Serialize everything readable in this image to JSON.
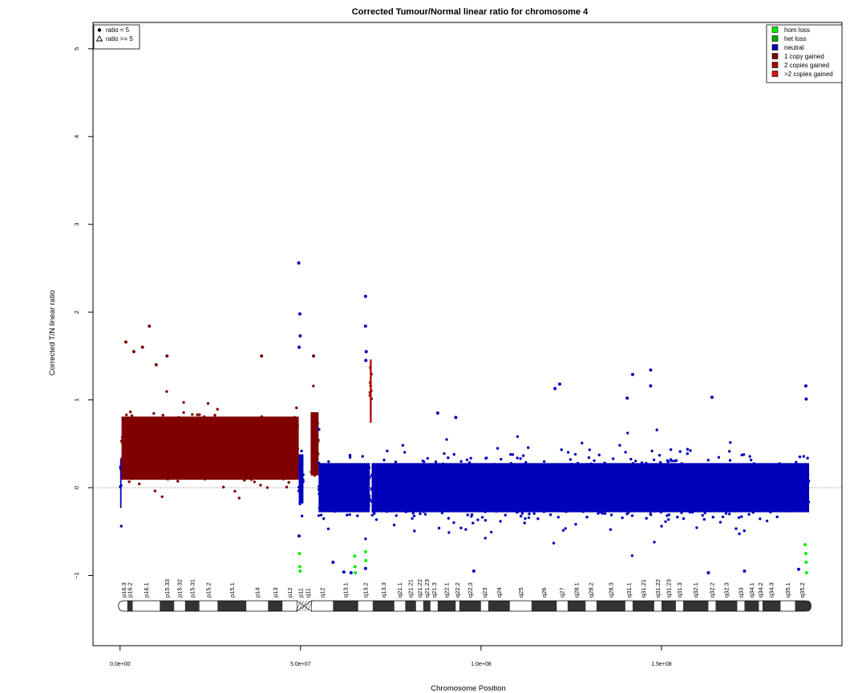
{
  "chart_data": {
    "type": "scatter",
    "title": "Corrected Tumour/Normal linear ratio for chromosome  4",
    "xlabel": "Chromosome Position",
    "ylabel": "Corrected T/N linear ratio",
    "xlim": [
      -7500000,
      200000000
    ],
    "ylim": [
      -1.8,
      5.3
    ],
    "x_ticks": [
      0,
      50000000,
      100000000,
      150000000
    ],
    "x_tick_labels": [
      "0.0e+00",
      "5.0e+07",
      "1.0e+08",
      "1.5e+08"
    ],
    "y_ticks": [
      -1,
      0,
      1,
      2,
      3,
      4,
      5
    ],
    "y_tick_labels": [
      "−1",
      "0",
      "1",
      "2",
      "3",
      "4",
      "5"
    ],
    "reference_line_y": 0,
    "shape_legend": {
      "position": "top-left",
      "entries": [
        {
          "label": "ratio < 5",
          "shape": "circle"
        },
        {
          "label": "ratio >= 5",
          "shape": "triangle"
        }
      ]
    },
    "legend": {
      "position": "top-right",
      "entries": [
        {
          "label": "hom loss",
          "color": "#00ee00"
        },
        {
          "label": "het loss",
          "color": "#00aa00"
        },
        {
          "label": "neutral",
          "color": "#0000bb"
        },
        {
          "label": "1 copy gained",
          "color": "#800000"
        },
        {
          "label": "2 copies gained",
          "color": "#aa0000"
        },
        {
          "label": ">2 copies gained",
          "color": "#dd1111"
        }
      ]
    },
    "segments": [
      {
        "state": "neutral",
        "x_start": 0,
        "x_end": 400000,
        "mean": 0.05,
        "color": "#0000bb"
      },
      {
        "state": "1 copy gained",
        "x_start": 400000,
        "x_end": 49500000,
        "mean": 0.45,
        "color": "#800000"
      },
      {
        "state": "neutral",
        "x_start": 49500000,
        "x_end": 50800000,
        "mean": 0.1,
        "color": "#0000bb"
      },
      {
        "state": "1 copy gained",
        "x_start": 52800000,
        "x_end": 55000000,
        "mean": 0.5,
        "color": "#800000"
      },
      {
        "state": "neutral",
        "x_start": 55000000,
        "x_end": 69200000,
        "mean": 0.0,
        "color": "#0000bb"
      },
      {
        "state": "2 copies gained",
        "x_start": 69200000,
        "x_end": 69700000,
        "mean": 1.1,
        "color": "#aa0000"
      },
      {
        "state": "neutral",
        "x_start": 69700000,
        "x_end": 190900000,
        "mean": 0.0,
        "color": "#0000bb"
      }
    ],
    "outliers": [
      {
        "x": 49500000,
        "y": 2.56,
        "state": "neutral"
      },
      {
        "x": 49800000,
        "y": 1.98,
        "state": "neutral"
      },
      {
        "x": 49900000,
        "y": 1.73,
        "state": "neutral"
      },
      {
        "x": 49600000,
        "y": 1.6,
        "state": "neutral"
      },
      {
        "x": 68000000,
        "y": 2.18,
        "state": "neutral"
      },
      {
        "x": 68000000,
        "y": 1.84,
        "state": "neutral"
      },
      {
        "x": 68200000,
        "y": 1.55,
        "state": "neutral"
      },
      {
        "x": 68100000,
        "y": 1.45,
        "state": "neutral"
      },
      {
        "x": 8100000,
        "y": 1.84,
        "state": "1 copy gained"
      },
      {
        "x": 1600000,
        "y": 1.66,
        "state": "1 copy gained"
      },
      {
        "x": 6200000,
        "y": 1.6,
        "state": "1 copy gained"
      },
      {
        "x": 39200000,
        "y": 1.5,
        "state": "1 copy gained"
      },
      {
        "x": 13000000,
        "y": 1.5,
        "state": "1 copy gained"
      },
      {
        "x": 10000000,
        "y": 1.4,
        "state": "1 copy gained"
      },
      {
        "x": 3800000,
        "y": 1.55,
        "state": "1 copy gained"
      },
      {
        "x": 53600000,
        "y": 1.5,
        "state": "1 copy gained"
      },
      {
        "x": 120500000,
        "y": 1.13,
        "state": "neutral"
      },
      {
        "x": 121800000,
        "y": 1.18,
        "state": "neutral"
      },
      {
        "x": 142000000,
        "y": 1.29,
        "state": "neutral"
      },
      {
        "x": 147000000,
        "y": 1.34,
        "state": "neutral"
      },
      {
        "x": 147000000,
        "y": 1.16,
        "state": "neutral"
      },
      {
        "x": 140500000,
        "y": 1.02,
        "state": "neutral"
      },
      {
        "x": 164000000,
        "y": 1.03,
        "state": "neutral"
      },
      {
        "x": 190000000,
        "y": 1.16,
        "state": "neutral"
      },
      {
        "x": 190100000,
        "y": 1.01,
        "state": "neutral"
      },
      {
        "x": 88000000,
        "y": 0.85,
        "state": "neutral"
      },
      {
        "x": 93000000,
        "y": 0.8,
        "state": "neutral"
      },
      {
        "x": 49700000,
        "y": -0.75,
        "state": "hom loss"
      },
      {
        "x": 49800000,
        "y": -0.9,
        "state": "hom loss"
      },
      {
        "x": 49900000,
        "y": -0.95,
        "state": "hom loss"
      },
      {
        "x": 65000000,
        "y": -0.78,
        "state": "hom loss"
      },
      {
        "x": 65100000,
        "y": -0.9,
        "state": "hom loss"
      },
      {
        "x": 65200000,
        "y": -0.97,
        "state": "hom loss"
      },
      {
        "x": 68000000,
        "y": -0.73,
        "state": "hom loss"
      },
      {
        "x": 68100000,
        "y": -0.83,
        "state": "hom loss"
      },
      {
        "x": 189800000,
        "y": -0.65,
        "state": "hom loss"
      },
      {
        "x": 190000000,
        "y": -0.75,
        "state": "hom loss"
      },
      {
        "x": 190100000,
        "y": -0.85,
        "state": "hom loss"
      },
      {
        "x": 190200000,
        "y": -0.97,
        "state": "hom loss"
      },
      {
        "x": 49600000,
        "y": -0.55,
        "state": "neutral"
      },
      {
        "x": 68000000,
        "y": -0.92,
        "state": "neutral"
      },
      {
        "x": 59000000,
        "y": -0.85,
        "state": "neutral"
      },
      {
        "x": 62000000,
        "y": -0.96,
        "state": "neutral"
      },
      {
        "x": 64000000,
        "y": -0.97,
        "state": "neutral"
      },
      {
        "x": 98000000,
        "y": -0.95,
        "state": "neutral"
      },
      {
        "x": 163000000,
        "y": -0.97,
        "state": "neutral"
      },
      {
        "x": 173000000,
        "y": -0.95,
        "state": "neutral"
      },
      {
        "x": 188000000,
        "y": -0.93,
        "state": "neutral"
      }
    ],
    "ideogram": {
      "x_start": 0,
      "x_end": 191000000,
      "centromere_start": 49000000,
      "centromere_end": 53000000,
      "bands": [
        {
          "name": "p16.3",
          "start": 0,
          "end": 2000000,
          "stain": "gneg"
        },
        {
          "name": "p16.2",
          "start": 2000000,
          "end": 3500000,
          "stain": "gpos"
        },
        {
          "name": "p16.1",
          "start": 3500000,
          "end": 11000000,
          "stain": "gneg"
        },
        {
          "name": "p15.33",
          "start": 11000000,
          "end": 15000000,
          "stain": "gpos"
        },
        {
          "name": "p15.32",
          "start": 15000000,
          "end": 18000000,
          "stain": "gneg"
        },
        {
          "name": "p15.31",
          "start": 18000000,
          "end": 22000000,
          "stain": "gpos"
        },
        {
          "name": "p15.2",
          "start": 22000000,
          "end": 27000000,
          "stain": "gneg"
        },
        {
          "name": "p15.1",
          "start": 27000000,
          "end": 35000000,
          "stain": "gpos"
        },
        {
          "name": "p14",
          "start": 35000000,
          "end": 41000000,
          "stain": "gneg"
        },
        {
          "name": "p13",
          "start": 41000000,
          "end": 45000000,
          "stain": "gpos"
        },
        {
          "name": "p12",
          "start": 45000000,
          "end": 49000000,
          "stain": "gneg"
        },
        {
          "name": "p11",
          "start": 49000000,
          "end": 51000000,
          "stain": "acen"
        },
        {
          "name": "q11",
          "start": 51000000,
          "end": 53000000,
          "stain": "acen"
        },
        {
          "name": "q12",
          "start": 53000000,
          "end": 59000000,
          "stain": "gneg"
        },
        {
          "name": "q13.1",
          "start": 59000000,
          "end": 66000000,
          "stain": "gpos"
        },
        {
          "name": "q13.2",
          "start": 66000000,
          "end": 70000000,
          "stain": "gneg"
        },
        {
          "name": "q13.3",
          "start": 70000000,
          "end": 76000000,
          "stain": "gpos"
        },
        {
          "name": "q21.1",
          "start": 76000000,
          "end": 79000000,
          "stain": "gneg"
        },
        {
          "name": "q21.21",
          "start": 79000000,
          "end": 82000000,
          "stain": "gpos"
        },
        {
          "name": "q21.22",
          "start": 82000000,
          "end": 84000000,
          "stain": "gneg"
        },
        {
          "name": "q21.23",
          "start": 84000000,
          "end": 86000000,
          "stain": "gpos"
        },
        {
          "name": "q21.3",
          "start": 86000000,
          "end": 88000000,
          "stain": "gneg"
        },
        {
          "name": "q22.1",
          "start": 88000000,
          "end": 93000000,
          "stain": "gpos"
        },
        {
          "name": "q22.2",
          "start": 93000000,
          "end": 94000000,
          "stain": "gneg"
        },
        {
          "name": "q22.3",
          "start": 94000000,
          "end": 100000000,
          "stain": "gpos"
        },
        {
          "name": "q23",
          "start": 100000000,
          "end": 102000000,
          "stain": "gneg"
        },
        {
          "name": "q24",
          "start": 102000000,
          "end": 108000000,
          "stain": "gpos"
        },
        {
          "name": "q25",
          "start": 108000000,
          "end": 114000000,
          "stain": "gneg"
        },
        {
          "name": "q26",
          "start": 114000000,
          "end": 121000000,
          "stain": "gpos"
        },
        {
          "name": "q27",
          "start": 121000000,
          "end": 124000000,
          "stain": "gneg"
        },
        {
          "name": "q28.1",
          "start": 124000000,
          "end": 129000000,
          "stain": "gpos"
        },
        {
          "name": "q28.2",
          "start": 129000000,
          "end": 132000000,
          "stain": "gneg"
        },
        {
          "name": "q28.3",
          "start": 132000000,
          "end": 140000000,
          "stain": "gpos"
        },
        {
          "name": "q31.1",
          "start": 140000000,
          "end": 142000000,
          "stain": "gneg"
        },
        {
          "name": "q31.21",
          "start": 142000000,
          "end": 148000000,
          "stain": "gpos"
        },
        {
          "name": "q31.22",
          "start": 148000000,
          "end": 150000000,
          "stain": "gneg"
        },
        {
          "name": "q31.23",
          "start": 150000000,
          "end": 154000000,
          "stain": "gpos"
        },
        {
          "name": "q31.3",
          "start": 154000000,
          "end": 156000000,
          "stain": "gneg"
        },
        {
          "name": "q32.1",
          "start": 156000000,
          "end": 163000000,
          "stain": "gpos"
        },
        {
          "name": "q32.2",
          "start": 163000000,
          "end": 165000000,
          "stain": "gneg"
        },
        {
          "name": "q32.3",
          "start": 165000000,
          "end": 171000000,
          "stain": "gpos"
        },
        {
          "name": "q33",
          "start": 171000000,
          "end": 173000000,
          "stain": "gneg"
        },
        {
          "name": "q34.1",
          "start": 173000000,
          "end": 177000000,
          "stain": "gpos"
        },
        {
          "name": "q34.2",
          "start": 177000000,
          "end": 178000000,
          "stain": "gneg"
        },
        {
          "name": "q34.3",
          "start": 178000000,
          "end": 183000000,
          "stain": "gpos"
        },
        {
          "name": "q35.1",
          "start": 183000000,
          "end": 187000000,
          "stain": "gneg"
        },
        {
          "name": "q35.2",
          "start": 187000000,
          "end": 191000000,
          "stain": "gpos"
        }
      ]
    }
  }
}
